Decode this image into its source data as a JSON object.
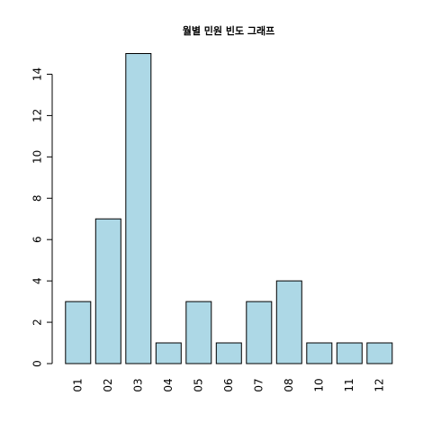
{
  "chart_data": {
    "type": "bar",
    "title": "월별 민원 빈도 그래프",
    "xlabel": "",
    "ylabel": "",
    "categories": [
      "01",
      "02",
      "03",
      "04",
      "05",
      "06",
      "07",
      "08",
      "10",
      "11",
      "12"
    ],
    "values": [
      3,
      7,
      15,
      1,
      3,
      1,
      3,
      4,
      1,
      1,
      1
    ],
    "ylim": [
      0,
      15
    ],
    "yticks": [
      "0",
      "2",
      "4",
      "6",
      "8",
      "10",
      "12",
      "14"
    ],
    "bar_color": "#add8e6",
    "bar_border_color": "#000000",
    "grid": false,
    "legend": "none"
  }
}
